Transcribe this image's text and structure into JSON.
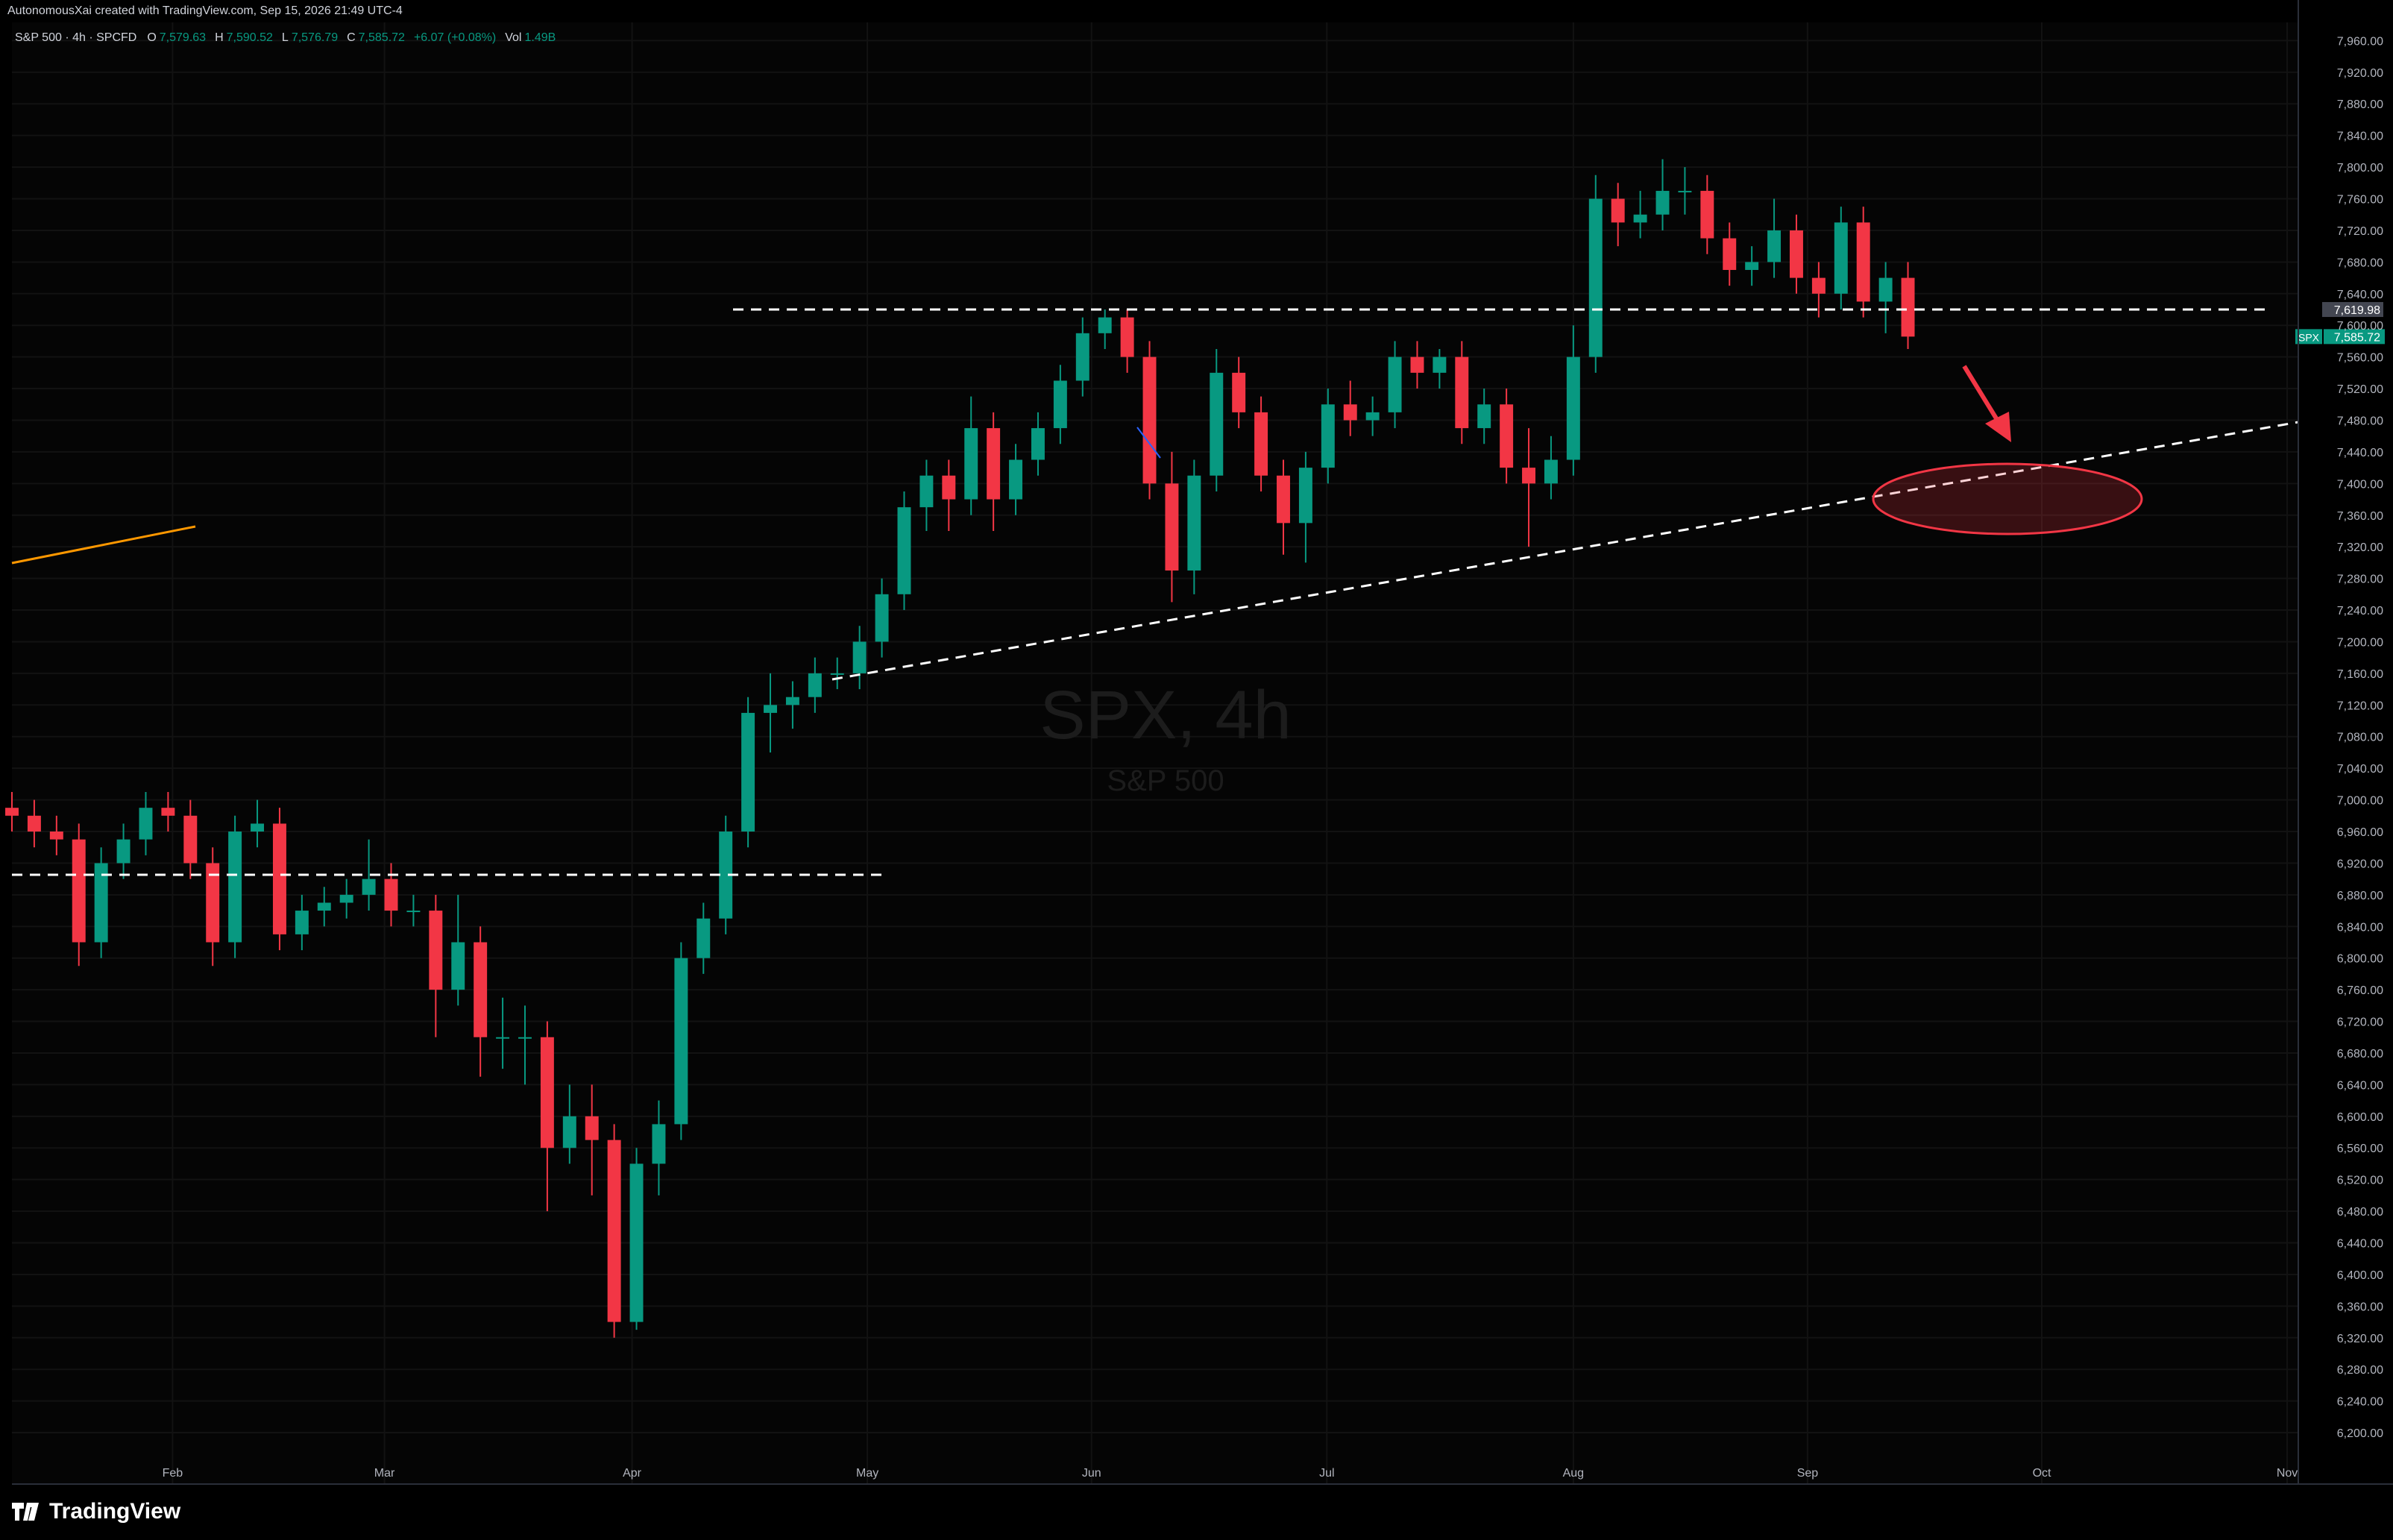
{
  "header": {
    "author": "AutonomousXai created with TradingView.com, Sep 15, 2026 21:49 UTC-4",
    "symbol": "S&P 500 · 4h · SPCFD",
    "o_key": "O",
    "o": "7,579.63",
    "h_key": "H",
    "h": "7,590.52",
    "l_key": "L",
    "l": "7,576.79",
    "c_key": "C",
    "c": "7,585.72",
    "change": "+6.07 (+0.08%)",
    "vol_key": "Vol",
    "vol": "1.49B"
  },
  "watermark": {
    "title": "SPX, 4h",
    "subtitle": "S&P 500"
  },
  "footer": {
    "brand": "TradingView"
  },
  "chart_data": {
    "type": "candlestick",
    "up_color": "#089981",
    "down_color": "#f23645",
    "grid": true,
    "xlim": [
      0,
      205
    ],
    "ylim": [
      6135,
      7983
    ],
    "xticks": [
      {
        "value": 14.4,
        "label": "Feb"
      },
      {
        "value": 33.4,
        "label": "Mar"
      },
      {
        "value": 55.6,
        "label": "Apr"
      },
      {
        "value": 76.7,
        "label": "May"
      },
      {
        "value": 96.8,
        "label": "Jun"
      },
      {
        "value": 117.9,
        "label": "Jul"
      },
      {
        "value": 140,
        "label": "Aug"
      },
      {
        "value": 161,
        "label": "Sep"
      },
      {
        "value": 182,
        "label": "Oct"
      },
      {
        "value": 204,
        "label": "Nov"
      }
    ],
    "yticks": [
      {
        "value": 6200,
        "label": "6,200.00"
      },
      {
        "value": 6240,
        "label": "6,240.00"
      },
      {
        "value": 6280,
        "label": "6,280.00"
      },
      {
        "value": 6320,
        "label": "6,320.00"
      },
      {
        "value": 6360,
        "label": "6,360.00"
      },
      {
        "value": 6400,
        "label": "6,400.00"
      },
      {
        "value": 6440,
        "label": "6,440.00"
      },
      {
        "value": 6480,
        "label": "6,480.00"
      },
      {
        "value": 6520,
        "label": "6,520.00"
      },
      {
        "value": 6560,
        "label": "6,560.00"
      },
      {
        "value": 6600,
        "label": "6,600.00"
      },
      {
        "value": 6640,
        "label": "6,640.00"
      },
      {
        "value": 6680,
        "label": "6,680.00"
      },
      {
        "value": 6720,
        "label": "6,720.00"
      },
      {
        "value": 6760,
        "label": "6,760.00"
      },
      {
        "value": 6800,
        "label": "6,800.00"
      },
      {
        "value": 6840,
        "label": "6,840.00"
      },
      {
        "value": 6880,
        "label": "6,880.00"
      },
      {
        "value": 6920,
        "label": "6,920.00"
      },
      {
        "value": 6960,
        "label": "6,960.00"
      },
      {
        "value": 7000,
        "label": "7,000.00"
      },
      {
        "value": 7040,
        "label": "7,040.00"
      },
      {
        "value": 7080,
        "label": "7,080.00"
      },
      {
        "value": 7120,
        "label": "7,120.00"
      },
      {
        "value": 7160,
        "label": "7,160.00"
      },
      {
        "value": 7200,
        "label": "7,200.00"
      },
      {
        "value": 7240,
        "label": "7,240.00"
      },
      {
        "value": 7280,
        "label": "7,280.00"
      },
      {
        "value": 7320,
        "label": "7,320.00"
      },
      {
        "value": 7360,
        "label": "7,360.00"
      },
      {
        "value": 7400,
        "label": "7,400.00"
      },
      {
        "value": 7440,
        "label": "7,440.00"
      },
      {
        "value": 7480,
        "label": "7,480.00"
      },
      {
        "value": 7520,
        "label": "7,520.00"
      },
      {
        "value": 7560,
        "label": "7,560.00"
      },
      {
        "value": 7600,
        "label": "7,600.00"
      },
      {
        "value": 7640,
        "label": "7,640.00"
      },
      {
        "value": 7680,
        "label": "7,680.00"
      },
      {
        "value": 7720,
        "label": "7,720.00"
      },
      {
        "value": 7760,
        "label": "7,760.00"
      },
      {
        "value": 7800,
        "label": "7,800.00"
      },
      {
        "value": 7840,
        "label": "7,840.00"
      },
      {
        "value": 7880,
        "label": "7,880.00"
      },
      {
        "value": 7920,
        "label": "7,920.00"
      },
      {
        "value": 7960,
        "label": "7,960.00"
      }
    ],
    "x": [
      0,
      2,
      4,
      6,
      8,
      10,
      12,
      14,
      16,
      18,
      20,
      22,
      24,
      26,
      28,
      30,
      32,
      34,
      36,
      38,
      40,
      42,
      44,
      46,
      48,
      50,
      52,
      54,
      56,
      58,
      60,
      62,
      64,
      66,
      68,
      70,
      72,
      74,
      76,
      78,
      80,
      82,
      84,
      86,
      88,
      90,
      92,
      94,
      96,
      98,
      100,
      102,
      104,
      106,
      108,
      110,
      112,
      114,
      116,
      118,
      120,
      122,
      124,
      126,
      128,
      130,
      132,
      134,
      136,
      138,
      140,
      142,
      144,
      146,
      148,
      150,
      152,
      154,
      156,
      158,
      160,
      162,
      164,
      166,
      168,
      170
    ],
    "open": [
      6990,
      6980,
      6960,
      6950,
      6820,
      6920,
      6950,
      6990,
      6980,
      6920,
      6820,
      6960,
      6970,
      6830,
      6860,
      6870,
      6880,
      6900,
      6860,
      6860,
      6760,
      6820,
      6700,
      6700,
      6700,
      6560,
      6600,
      6570,
      6340,
      6540,
      6590,
      6800,
      6850,
      6960,
      7110,
      7120,
      7130,
      7160,
      7160,
      7200,
      7260,
      7370,
      7410,
      7380,
      7470,
      7380,
      7430,
      7470,
      7530,
      7590,
      7610,
      7560,
      7400,
      7290,
      7410,
      7540,
      7490,
      7410,
      7350,
      7420,
      7500,
      7480,
      7490,
      7560,
      7540,
      7560,
      7470,
      7500,
      7420,
      7400,
      7430,
      7560,
      7760,
      7730,
      7740,
      7770,
      7770,
      7710,
      7670,
      7680,
      7720,
      7660,
      7640,
      7730,
      7630,
      7660
    ],
    "high": [
      7010,
      7000,
      6980,
      6970,
      6940,
      6970,
      7010,
      7010,
      7000,
      6940,
      6980,
      7000,
      6990,
      6880,
      6890,
      6900,
      6950,
      6920,
      6880,
      6880,
      6880,
      6840,
      6750,
      6740,
      6720,
      6640,
      6640,
      6590,
      6560,
      6620,
      6820,
      6870,
      6980,
      7130,
      7160,
      7150,
      7180,
      7180,
      7220,
      7280,
      7390,
      7430,
      7430,
      7510,
      7490,
      7450,
      7490,
      7550,
      7610,
      7620,
      7620,
      7580,
      7440,
      7430,
      7570,
      7560,
      7510,
      7430,
      7440,
      7520,
      7530,
      7510,
      7580,
      7580,
      7570,
      7580,
      7520,
      7520,
      7470,
      7460,
      7600,
      7790,
      7780,
      7770,
      7810,
      7800,
      7790,
      7730,
      7700,
      7760,
      7740,
      7680,
      7750,
      7750,
      7680,
      7680
    ],
    "low": [
      6960,
      6940,
      6930,
      6790,
      6800,
      6900,
      6930,
      6960,
      6900,
      6790,
      6800,
      6940,
      6810,
      6810,
      6840,
      6850,
      6860,
      6840,
      6840,
      6700,
      6740,
      6650,
      6660,
      6640,
      6480,
      6540,
      6500,
      6320,
      6330,
      6500,
      6570,
      6780,
      6830,
      6940,
      7060,
      7090,
      7110,
      7140,
      7140,
      7180,
      7240,
      7340,
      7340,
      7360,
      7340,
      7360,
      7410,
      7450,
      7510,
      7570,
      7540,
      7380,
      7250,
      7260,
      7390,
      7470,
      7390,
      7310,
      7300,
      7400,
      7460,
      7460,
      7470,
      7520,
      7520,
      7450,
      7450,
      7400,
      7320,
      7380,
      7410,
      7540,
      7700,
      7710,
      7720,
      7740,
      7690,
      7650,
      7650,
      7660,
      7640,
      7610,
      7620,
      7610,
      7590,
      7570
    ],
    "close": [
      6980,
      6960,
      6950,
      6820,
      6920,
      6950,
      6990,
      6980,
      6920,
      6820,
      6960,
      6970,
      6830,
      6860,
      6870,
      6880,
      6900,
      6860,
      6860,
      6760,
      6820,
      6700,
      6700,
      6700,
      6560,
      6600,
      6570,
      6340,
      6540,
      6590,
      6800,
      6850,
      6960,
      7110,
      7120,
      7130,
      7160,
      7160,
      7200,
      7260,
      7370,
      7410,
      7380,
      7470,
      7380,
      7430,
      7470,
      7530,
      7590,
      7610,
      7560,
      7400,
      7290,
      7410,
      7540,
      7490,
      7410,
      7350,
      7420,
      7500,
      7480,
      7490,
      7560,
      7540,
      7560,
      7470,
      7500,
      7420,
      7400,
      7430,
      7560,
      7760,
      7730,
      7740,
      7770,
      7770,
      7710,
      7670,
      7680,
      7720,
      7660,
      7640,
      7730,
      7630,
      7660,
      7585.72
    ],
    "level": {
      "value": 7619.98,
      "label": "7,619.98"
    },
    "symbol": "SPX",
    "last": {
      "value": 7585.72,
      "label": "7,585.72"
    }
  }
}
